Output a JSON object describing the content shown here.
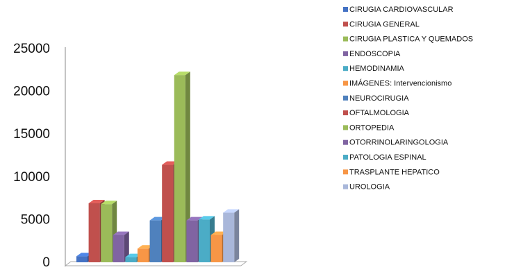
{
  "chart_data": {
    "type": "bar",
    "style": "3d-column",
    "categories": [
      "CIRUGIA CARDIOVASCULAR",
      "CIRUGIA GENERAL",
      "CIRUGIA PLASTICA Y QUEMADOS",
      "ENDOSCOPIA",
      "HEMODINAMIA",
      "IMÁGENES: Intervencionismo",
      "NEUROCIRUGIA",
      "OFTALMOLOGIA",
      "ORTOPEDIA",
      "OTORRINOLARINGOLOGIA",
      "PATOLOGIA ESPINAL",
      "TRASPLANTE HEPATICO",
      "UROLOGIA"
    ],
    "values": [
      700,
      6900,
      6800,
      3200,
      600,
      1600,
      4900,
      11400,
      21900,
      4900,
      5000,
      3200,
      5800
    ],
    "colors": [
      "#4472C4",
      "#C0504D",
      "#9BBB59",
      "#8064A2",
      "#4BACC6",
      "#F79646",
      "#4F81BD",
      "#C0504D",
      "#9BBB59",
      "#8064A2",
      "#4BACC6",
      "#F79646",
      "#A9B7DA"
    ],
    "ylim": [
      0,
      25000
    ],
    "yticks": [
      "0",
      "5000",
      "10000",
      "15000",
      "20000",
      "25000"
    ],
    "grid": false,
    "legend_position": "right",
    "title": "",
    "xlabel": "",
    "ylabel": ""
  }
}
